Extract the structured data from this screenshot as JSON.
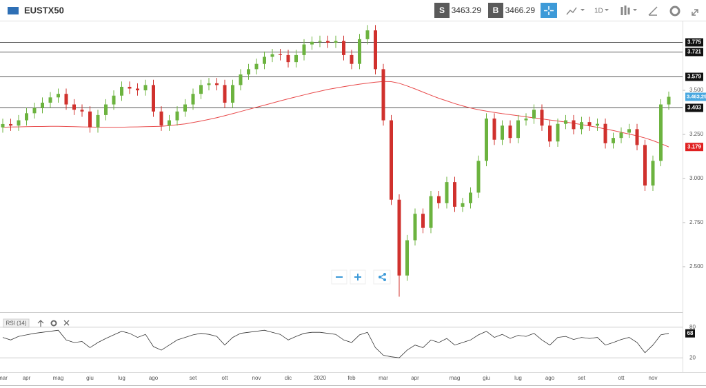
{
  "toolbar": {
    "symbol": "EUSTX50",
    "sell_label": "S",
    "sell_price": "3463.29",
    "buy_label": "B",
    "buy_price": "3466.29",
    "timeframe": "1D"
  },
  "chart_data": {
    "type": "candlestick",
    "categories": [
      "mar",
      null,
      null,
      "apr",
      null,
      null,
      null,
      "mag",
      null,
      null,
      null,
      "giu",
      null,
      null,
      null,
      "lug",
      null,
      null,
      null,
      "ago",
      null,
      null,
      null,
      null,
      "set",
      null,
      null,
      null,
      "ott",
      null,
      null,
      null,
      "nov",
      null,
      null,
      null,
      "dic",
      null,
      null,
      null,
      "2020",
      null,
      null,
      null,
      "feb",
      null,
      null,
      null,
      "mar",
      null,
      null,
      null,
      "apr",
      null,
      null,
      null,
      null,
      "mag",
      null,
      null,
      null,
      "giu",
      null,
      null,
      null,
      "lug",
      null,
      null,
      null,
      "ago",
      null,
      null,
      null,
      "set",
      null,
      null,
      null,
      null,
      "ott",
      null,
      null,
      null,
      "nov",
      null,
      null
    ],
    "open": [
      3290,
      3309,
      3300,
      3330,
      3370,
      3400,
      3430,
      3460,
      3480,
      3420,
      3390,
      3380,
      3290,
      3360,
      3420,
      3470,
      3520,
      3510,
      3500,
      3530,
      3380,
      3300,
      3330,
      3380,
      3420,
      3480,
      3530,
      3540,
      3530,
      3430,
      3530,
      3590,
      3620,
      3650,
      3690,
      3705,
      3700,
      3660,
      3700,
      3760,
      3775,
      3780,
      3770,
      3780,
      3700,
      3650,
      3790,
      3840,
      3620,
      3330,
      2880,
      2450,
      2650,
      2800,
      2720,
      2900,
      2860,
      2980,
      2840,
      2860,
      2920,
      3100,
      3340,
      3220,
      3300,
      3230,
      3330,
      3340,
      3390,
      3300,
      3210,
      3310,
      3330,
      3280,
      3320,
      3300,
      3310,
      3200,
      3230,
      3260,
      3280,
      3190,
      2960,
      3100,
      3420
    ],
    "high": [
      3339,
      3339,
      3360,
      3400,
      3430,
      3460,
      3490,
      3510,
      3510,
      3450,
      3420,
      3410,
      3390,
      3450,
      3500,
      3550,
      3550,
      3540,
      3560,
      3560,
      3410,
      3360,
      3410,
      3450,
      3510,
      3560,
      3570,
      3570,
      3560,
      3560,
      3620,
      3650,
      3680,
      3720,
      3735,
      3735,
      3730,
      3730,
      3790,
      3805,
      3810,
      3810,
      3810,
      3810,
      3730,
      3820,
      3870,
      3870,
      3650,
      3360,
      2910,
      2680,
      2830,
      2830,
      2930,
      2930,
      3010,
      3010,
      2890,
      2950,
      3130,
      3370,
      3370,
      3330,
      3330,
      3360,
      3370,
      3420,
      3420,
      3330,
      3340,
      3360,
      3360,
      3350,
      3350,
      3340,
      3340,
      3260,
      3290,
      3310,
      3310,
      3220,
      3130,
      3450,
      3493
    ],
    "low": [
      3260,
      3270,
      3270,
      3300,
      3340,
      3370,
      3400,
      3430,
      3390,
      3360,
      3350,
      3260,
      3260,
      3330,
      3390,
      3440,
      3480,
      3470,
      3470,
      3350,
      3270,
      3270,
      3300,
      3350,
      3390,
      3450,
      3500,
      3500,
      3400,
      3400,
      3500,
      3560,
      3590,
      3620,
      3660,
      3670,
      3630,
      3630,
      3670,
      3730,
      3745,
      3740,
      3740,
      3670,
      3620,
      3620,
      3760,
      3590,
      3300,
      2850,
      2330,
      2420,
      2620,
      2690,
      2690,
      2830,
      2830,
      2810,
      2810,
      2830,
      2890,
      3070,
      3190,
      3190,
      3200,
      3200,
      3300,
      3310,
      3270,
      3180,
      3180,
      3280,
      3250,
      3250,
      3270,
      3270,
      3170,
      3170,
      3200,
      3230,
      3160,
      2930,
      2930,
      3070,
      3390
    ],
    "close": [
      3309,
      3300,
      3330,
      3370,
      3400,
      3430,
      3460,
      3480,
      3420,
      3390,
      3380,
      3290,
      3360,
      3420,
      3470,
      3520,
      3510,
      3500,
      3530,
      3380,
      3300,
      3330,
      3380,
      3420,
      3480,
      3530,
      3540,
      3530,
      3430,
      3530,
      3590,
      3620,
      3650,
      3690,
      3705,
      3700,
      3660,
      3700,
      3760,
      3775,
      3780,
      3770,
      3780,
      3700,
      3650,
      3790,
      3840,
      3620,
      3330,
      2880,
      2450,
      2650,
      2800,
      2720,
      2900,
      2860,
      2980,
      2840,
      2860,
      2920,
      3100,
      3340,
      3220,
      3300,
      3230,
      3330,
      3340,
      3390,
      3300,
      3210,
      3310,
      3330,
      3280,
      3320,
      3300,
      3310,
      3200,
      3230,
      3260,
      3280,
      3190,
      2960,
      3100,
      3420,
      3463.29
    ],
    "up_color": "#6cb33f",
    "down_color": "#d0312d",
    "ma": {
      "color": "#e8494a",
      "last_label": "3.179",
      "values": [
        3290,
        3292,
        3293,
        3294,
        3295,
        3295,
        3296,
        3296,
        3295,
        3294,
        3293,
        3292,
        3291,
        3290,
        3290,
        3291,
        3292,
        3293,
        3294,
        3295,
        3296,
        3300,
        3305,
        3310,
        3318,
        3326,
        3335,
        3345,
        3356,
        3368,
        3380,
        3392,
        3404,
        3416,
        3428,
        3440,
        3452,
        3463,
        3474,
        3485,
        3495,
        3505,
        3513,
        3521,
        3528,
        3535,
        3541,
        3546,
        3550,
        3549,
        3540,
        3525,
        3508,
        3490,
        3472,
        3455,
        3440,
        3425,
        3412,
        3400,
        3390,
        3382,
        3375,
        3368,
        3362,
        3356,
        3350,
        3344,
        3338,
        3332,
        3326,
        3320,
        3313,
        3306,
        3298,
        3290,
        3281,
        3272,
        3262,
        3252,
        3242,
        3230,
        3215,
        3198,
        3179
      ]
    },
    "last_price_label": "3.463,29",
    "price_lines": [
      {
        "value": 3775,
        "label": "3.775"
      },
      {
        "value": 3721,
        "label": "3.721"
      },
      {
        "value": 3579,
        "label": "3.579"
      },
      {
        "value": 3403,
        "label": "3.403"
      }
    ],
    "ylim": [
      2242,
      3895
    ],
    "yticks": [
      {
        "value": 3500,
        "label": "3.500"
      },
      {
        "value": 3250,
        "label": "3.250"
      },
      {
        "value": 3000,
        "label": "3.000"
      },
      {
        "value": 2750,
        "label": "2.750"
      },
      {
        "value": 2500,
        "label": "2.500"
      }
    ],
    "rsi": {
      "name": "RSI (14)",
      "color": "#333333",
      "ylim": [
        0,
        100
      ],
      "yticks": [
        80,
        20
      ],
      "values": [
        60,
        55,
        62,
        65,
        68,
        70,
        72,
        74,
        55,
        50,
        52,
        40,
        50,
        58,
        65,
        72,
        68,
        60,
        66,
        42,
        35,
        45,
        55,
        60,
        65,
        68,
        66,
        62,
        45,
        60,
        68,
        70,
        72,
        74,
        70,
        66,
        55,
        62,
        68,
        70,
        70,
        68,
        66,
        55,
        50,
        65,
        70,
        40,
        25,
        22,
        20,
        35,
        45,
        40,
        55,
        50,
        58,
        45,
        50,
        55,
        65,
        72,
        60,
        66,
        58,
        64,
        62,
        68,
        55,
        45,
        60,
        62,
        56,
        60,
        58,
        60,
        45,
        50,
        56,
        60,
        50,
        30,
        45,
        65,
        68
      ]
    }
  }
}
